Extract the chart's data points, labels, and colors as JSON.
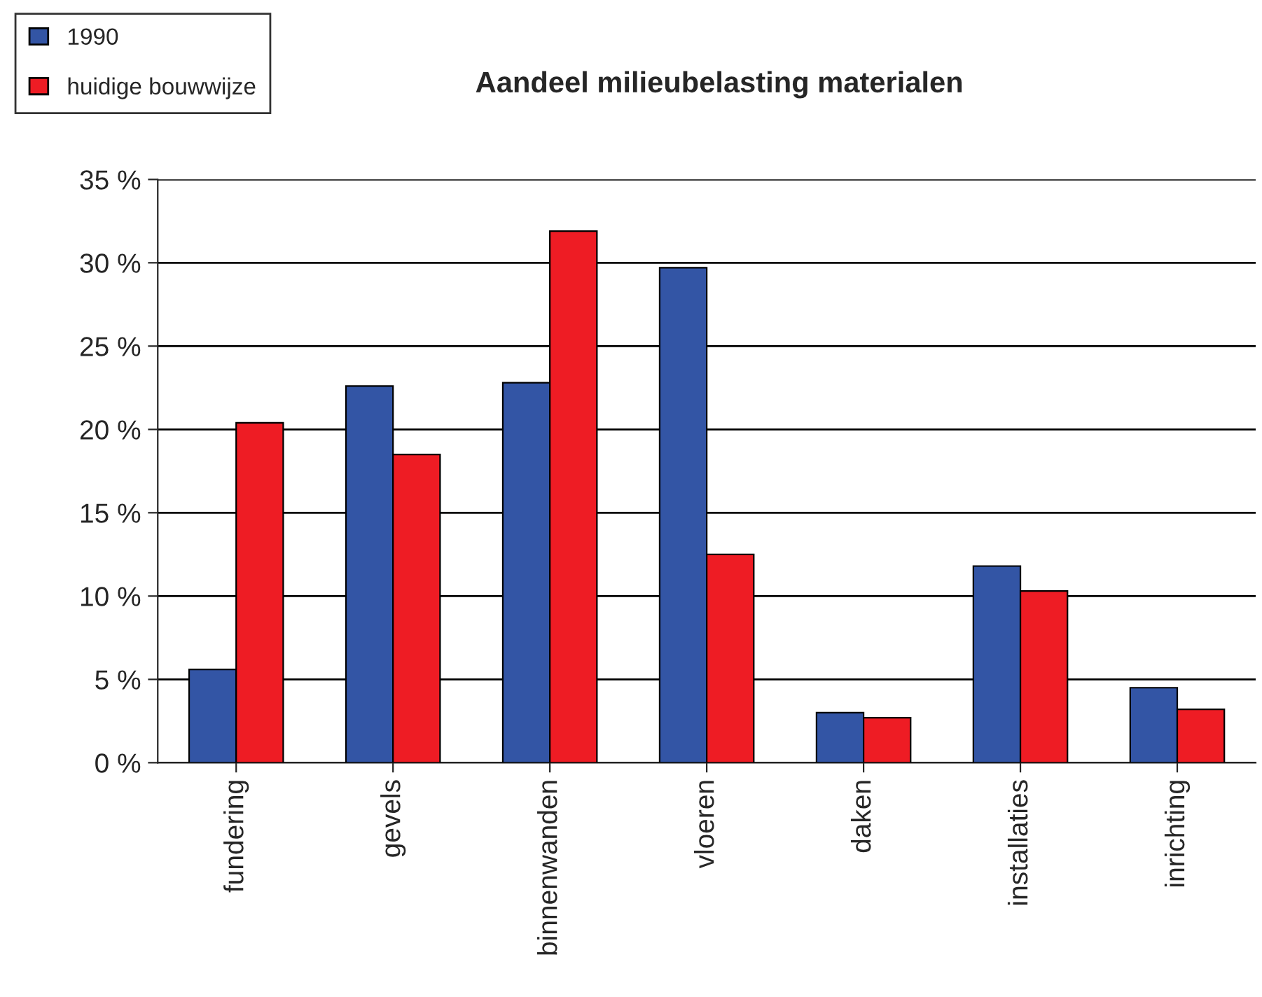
{
  "chart_data": {
    "type": "bar",
    "title": "Aandeel milieubelasting materialen",
    "categories": [
      "fundering",
      "gevels",
      "binnenwanden",
      "vloeren",
      "daken",
      "installaties",
      "inrichting"
    ],
    "series": [
      {
        "name": "1990",
        "color": "#3355a5",
        "values": [
          5.6,
          22.6,
          22.8,
          29.7,
          3.0,
          11.8,
          4.5
        ]
      },
      {
        "name": "huidige bouwwijze",
        "color": "#ee1c24",
        "values": [
          20.4,
          18.5,
          31.9,
          12.5,
          2.7,
          10.3,
          3.2
        ]
      }
    ],
    "ylim": [
      0,
      35
    ],
    "yticks": [
      {
        "value": 0,
        "label": "0 %"
      },
      {
        "value": 5,
        "label": "5 %"
      },
      {
        "value": 10,
        "label": "10 %"
      },
      {
        "value": 15,
        "label": "15 %"
      },
      {
        "value": 20,
        "label": "20 %"
      },
      {
        "value": 25,
        "label": "25 %"
      },
      {
        "value": 30,
        "label": "30 %"
      },
      {
        "value": 35,
        "label": "35 %"
      }
    ],
    "grid": "y",
    "legend": "top left"
  }
}
